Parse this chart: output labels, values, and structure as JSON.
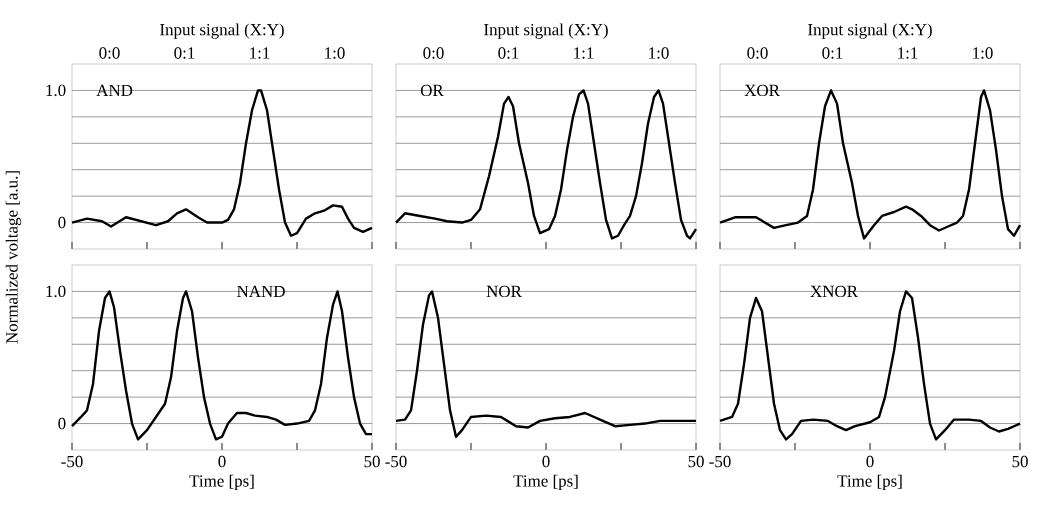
{
  "chart_data": [
    {
      "type": "line",
      "title": "AND",
      "annotations": [
        "Input signal (X:Y)",
        "0:0",
        "0:1",
        "1:1",
        "1:0"
      ],
      "xlim": [
        -50,
        50
      ],
      "xticks": [
        {
          "value": -50,
          "label": null
        },
        {
          "value": -25,
          "label": null
        },
        {
          "value": 0,
          "label": null
        },
        {
          "value": 25,
          "label": null
        },
        {
          "value": 50,
          "label": null
        }
      ],
      "ylim": [
        -0.2,
        1.2
      ],
      "yticks": [
        0,
        {
          "value": 0.2,
          "label": null
        },
        {
          "value": 0.4,
          "label": null
        },
        {
          "value": 0.6,
          "label": null
        },
        {
          "value": 0.8,
          "label": null
        },
        {
          "value": 1,
          "label": "1.0"
        }
      ],
      "grid": "y",
      "tick_labels": "y",
      "x": [
        -50,
        -45,
        -40,
        -37,
        -32,
        -27,
        -22,
        -18,
        -15,
        -12,
        -8,
        -5,
        0,
        2,
        4,
        6,
        8,
        10,
        12,
        13,
        15,
        17,
        19,
        21,
        23,
        25,
        28,
        31,
        34,
        37,
        40,
        42,
        44,
        47,
        50
      ],
      "series": [
        {
          "color": "#000000",
          "values": [
            0.0,
            0.03,
            0.01,
            -0.03,
            0.04,
            0.01,
            -0.02,
            0.01,
            0.07,
            0.1,
            0.04,
            0.0,
            0.0,
            0.02,
            0.1,
            0.3,
            0.6,
            0.85,
            1.0,
            1.0,
            0.85,
            0.55,
            0.25,
            0.0,
            -0.1,
            -0.08,
            0.03,
            0.07,
            0.09,
            0.13,
            0.12,
            0.03,
            -0.04,
            -0.07,
            -0.04
          ]
        }
      ]
    },
    {
      "type": "line",
      "title": "OR",
      "annotations": [
        "Input signal (X:Y)",
        "0:0",
        "0:1",
        "1:1",
        "1:0"
      ],
      "xlim": [
        -50,
        50
      ],
      "xticks": [
        {
          "value": -50,
          "label": null
        },
        {
          "value": -25,
          "label": null
        },
        {
          "value": 0,
          "label": null
        },
        {
          "value": 25,
          "label": null
        },
        {
          "value": 50,
          "label": null
        }
      ],
      "ylim": [
        -0.2,
        1.2
      ],
      "yticks": [
        {
          "value": 0,
          "label": null
        },
        {
          "value": 0.2,
          "label": null
        },
        {
          "value": 0.4,
          "label": null
        },
        {
          "value": 0.6,
          "label": null
        },
        {
          "value": 0.8,
          "label": null
        },
        {
          "value": 1,
          "label": null
        }
      ],
      "grid": "y",
      "tick_labels": false,
      "x": [
        -50,
        -47,
        -42,
        -37,
        -33,
        -28,
        -25,
        -22,
        -19,
        -16,
        -14,
        -12.5,
        -11,
        -9,
        -6,
        -4,
        -2,
        1,
        3,
        5,
        7,
        9,
        11,
        12.5,
        14,
        16,
        18,
        20,
        22,
        24,
        26,
        28,
        30,
        32,
        34,
        36,
        37.5,
        39,
        41,
        43,
        45,
        47,
        48,
        50
      ],
      "series": [
        {
          "color": "#000000",
          "values": [
            0.0,
            0.07,
            0.05,
            0.03,
            0.01,
            0.0,
            0.02,
            0.1,
            0.35,
            0.65,
            0.9,
            0.95,
            0.88,
            0.6,
            0.3,
            0.05,
            -0.08,
            -0.05,
            0.05,
            0.25,
            0.55,
            0.8,
            0.97,
            1.0,
            0.9,
            0.6,
            0.3,
            0.02,
            -0.12,
            -0.1,
            -0.02,
            0.05,
            0.2,
            0.45,
            0.75,
            0.95,
            1.0,
            0.9,
            0.6,
            0.3,
            0.02,
            -0.1,
            -0.12,
            -0.05
          ]
        }
      ]
    },
    {
      "type": "line",
      "title": "XOR",
      "annotations": [
        "Input signal (X:Y)",
        "0:0",
        "0:1",
        "1:1",
        "1:0"
      ],
      "xlim": [
        -50,
        50
      ],
      "xticks": [
        {
          "value": -50,
          "label": null
        },
        {
          "value": -25,
          "label": null
        },
        {
          "value": 0,
          "label": null
        },
        {
          "value": 25,
          "label": null
        },
        {
          "value": 50,
          "label": null
        }
      ],
      "ylim": [
        -0.2,
        1.2
      ],
      "yticks": [
        {
          "value": 0,
          "label": null
        },
        {
          "value": 0.2,
          "label": null
        },
        {
          "value": 0.4,
          "label": null
        },
        {
          "value": 0.6,
          "label": null
        },
        {
          "value": 0.8,
          "label": null
        },
        {
          "value": 1,
          "label": null
        }
      ],
      "grid": "y",
      "tick_labels": false,
      "x": [
        -50,
        -45,
        -38,
        -32,
        -28,
        -24,
        -21,
        -19,
        -17,
        -15,
        -13,
        -11,
        -9,
        -6,
        -4,
        -2,
        1,
        4,
        8,
        12,
        14,
        17,
        20,
        23,
        26,
        29,
        31,
        33,
        35,
        37,
        38,
        40,
        42,
        44,
        46,
        48,
        50
      ],
      "series": [
        {
          "color": "#000000",
          "values": [
            0.0,
            0.04,
            0.04,
            -0.04,
            -0.02,
            0.0,
            0.05,
            0.25,
            0.6,
            0.88,
            1.0,
            0.9,
            0.6,
            0.3,
            0.05,
            -0.12,
            -0.03,
            0.05,
            0.08,
            0.12,
            0.1,
            0.05,
            -0.02,
            -0.06,
            -0.03,
            0.0,
            0.05,
            0.25,
            0.6,
            0.95,
            1.0,
            0.85,
            0.55,
            0.2,
            -0.05,
            -0.1,
            -0.02
          ]
        }
      ]
    },
    {
      "type": "line",
      "title": "NAND",
      "xlabel": "Time [ps]",
      "ylabel": "Normalized voltage [a.u.]",
      "xlim": [
        -50,
        50
      ],
      "xticks": [
        -50,
        {
          "value": -25,
          "label": null
        },
        0,
        {
          "value": 25,
          "label": null
        },
        50
      ],
      "ylim": [
        -0.2,
        1.2
      ],
      "yticks": [
        0,
        {
          "value": 0.2,
          "label": null
        },
        {
          "value": 0.4,
          "label": null
        },
        {
          "value": 0.6,
          "label": null
        },
        {
          "value": 0.8,
          "label": null
        },
        {
          "value": 1,
          "label": "1.0"
        }
      ],
      "grid": "y",
      "x": [
        -50,
        -47,
        -45,
        -43,
        -41,
        -39,
        -37.5,
        -36,
        -34,
        -32,
        -30,
        -28,
        -25,
        -22,
        -19,
        -17,
        -15,
        -13,
        -12,
        -10,
        -8,
        -6,
        -4,
        -2,
        0,
        2,
        5,
        8,
        11,
        15,
        18,
        21,
        25,
        29,
        31,
        33,
        35,
        37,
        38.5,
        40,
        42,
        44,
        46,
        48,
        50
      ],
      "series": [
        {
          "color": "#000000",
          "values": [
            -0.02,
            0.05,
            0.1,
            0.3,
            0.7,
            0.95,
            1.0,
            0.88,
            0.55,
            0.25,
            0.0,
            -0.12,
            -0.05,
            0.05,
            0.15,
            0.35,
            0.7,
            0.95,
            1.0,
            0.85,
            0.5,
            0.2,
            0.0,
            -0.12,
            -0.1,
            0.0,
            0.08,
            0.08,
            0.06,
            0.05,
            0.03,
            -0.01,
            0.0,
            0.02,
            0.1,
            0.3,
            0.65,
            0.9,
            1.0,
            0.85,
            0.5,
            0.2,
            0.0,
            -0.08,
            -0.08
          ]
        }
      ]
    },
    {
      "type": "line",
      "title": "NOR",
      "xlabel": "Time [ps]",
      "xlim": [
        -50,
        50
      ],
      "xticks": [
        -50,
        {
          "value": -25,
          "label": null
        },
        0,
        {
          "value": 25,
          "label": null
        },
        50
      ],
      "ylim": [
        -0.2,
        1.2
      ],
      "yticks": [
        {
          "value": 0,
          "label": null
        },
        {
          "value": 0.2,
          "label": null
        },
        {
          "value": 0.4,
          "label": null
        },
        {
          "value": 0.6,
          "label": null
        },
        {
          "value": 0.8,
          "label": null
        },
        {
          "value": 1,
          "label": null
        }
      ],
      "grid": "y",
      "tick_labels": "x",
      "x": [
        -50,
        -47,
        -45,
        -43,
        -41,
        -39,
        -38,
        -36,
        -34,
        -32,
        -30,
        -28,
        -25,
        -20,
        -15,
        -10,
        -6,
        -2,
        3,
        8,
        13,
        18,
        23,
        28,
        33,
        38,
        43,
        50
      ],
      "series": [
        {
          "color": "#000000",
          "values": [
            0.02,
            0.03,
            0.1,
            0.4,
            0.75,
            0.97,
            1.0,
            0.8,
            0.45,
            0.1,
            -0.1,
            -0.05,
            0.05,
            0.06,
            0.05,
            -0.02,
            -0.03,
            0.02,
            0.04,
            0.05,
            0.08,
            0.03,
            -0.02,
            -0.01,
            0.0,
            0.02,
            0.02,
            0.02
          ]
        }
      ]
    },
    {
      "type": "line",
      "title": "XNOR",
      "xlabel": "Time [ps]",
      "xlim": [
        -50,
        50
      ],
      "xticks": [
        -50,
        {
          "value": -25,
          "label": null
        },
        0,
        {
          "value": 25,
          "label": null
        },
        50
      ],
      "ylim": [
        -0.2,
        1.2
      ],
      "yticks": [
        {
          "value": 0,
          "label": null
        },
        {
          "value": 0.2,
          "label": null
        },
        {
          "value": 0.4,
          "label": null
        },
        {
          "value": 0.6,
          "label": null
        },
        {
          "value": 0.8,
          "label": null
        },
        {
          "value": 1,
          "label": null
        }
      ],
      "grid": "y",
      "tick_labels": "x",
      "x": [
        -50,
        -46,
        -44,
        -42,
        -40,
        -38,
        -36,
        -34,
        -32,
        -30,
        -28,
        -26,
        -23,
        -19,
        -14,
        -11,
        -8,
        -5,
        0,
        3,
        5,
        8,
        10,
        12,
        14,
        16,
        18,
        20,
        22,
        25,
        28,
        33,
        37,
        40,
        43,
        46,
        50
      ],
      "series": [
        {
          "color": "#000000",
          "values": [
            0.02,
            0.05,
            0.15,
            0.45,
            0.8,
            0.95,
            0.85,
            0.5,
            0.15,
            -0.05,
            -0.12,
            -0.08,
            0.02,
            0.03,
            0.02,
            -0.02,
            -0.05,
            -0.02,
            0.01,
            0.05,
            0.2,
            0.55,
            0.85,
            1.0,
            0.95,
            0.65,
            0.3,
            0.0,
            -0.12,
            -0.05,
            0.03,
            0.03,
            0.02,
            -0.03,
            -0.06,
            -0.04,
            0.0
          ]
        }
      ]
    }
  ]
}
